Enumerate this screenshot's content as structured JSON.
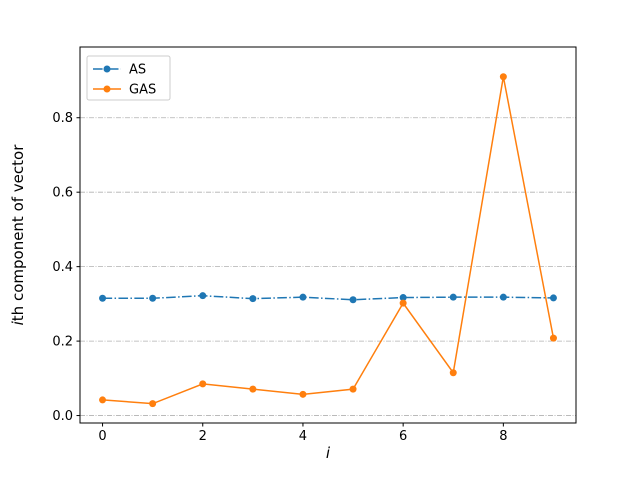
{
  "figure": {
    "background": "#ffffff",
    "xlabel_italic": "i",
    "ylabel_italic": "i",
    "ylabel_rest": "th component of vector"
  },
  "chart_data": {
    "type": "line",
    "title": "",
    "xlabel": "i",
    "ylabel": "ith component of vector",
    "x": [
      0,
      1,
      2,
      3,
      4,
      5,
      6,
      7,
      8,
      9
    ],
    "series": [
      {
        "name": "AS",
        "color": "#1f77b4",
        "linestyle": "dashdot",
        "marker": "circle",
        "values": [
          0.315,
          0.315,
          0.322,
          0.314,
          0.318,
          0.311,
          0.317,
          0.318,
          0.318,
          0.316
        ]
      },
      {
        "name": "GAS",
        "color": "#ff7f0e",
        "linestyle": "solid",
        "marker": "circle",
        "values": [
          0.042,
          0.032,
          0.085,
          0.071,
          0.057,
          0.071,
          0.302,
          0.115,
          0.91,
          0.208
        ]
      }
    ],
    "xlim": [
      -0.45,
      9.45
    ],
    "ylim": [
      -0.02,
      0.99
    ],
    "xticks": [
      0,
      2,
      4,
      6,
      8
    ],
    "xtick_labels": [
      "0",
      "2",
      "4",
      "6",
      "8"
    ],
    "yticks": [
      0,
      0.2,
      0.4,
      0.6,
      0.8
    ],
    "ytick_labels": [
      "0.0",
      "0.2",
      "0.4",
      "0.6",
      "0.8"
    ],
    "grid": "horizontal",
    "grid_style": "dashdot",
    "grid_color": "#b0b0b0",
    "legend_position": "upper-left",
    "legend_labels": [
      "AS",
      "GAS"
    ]
  }
}
